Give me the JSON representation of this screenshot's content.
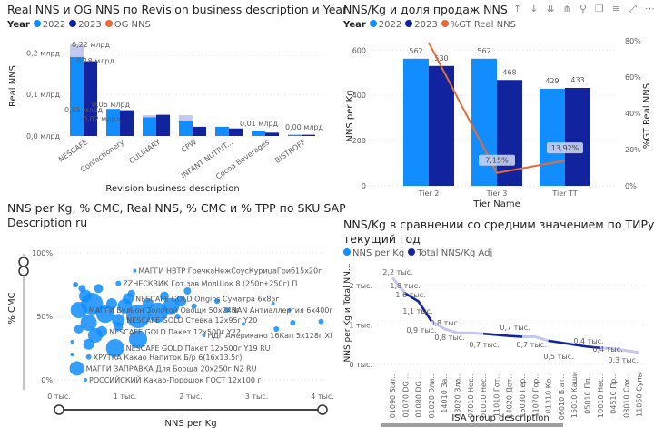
{
  "colors": {
    "y2022": "#118dff",
    "y2023": "#12239e",
    "og": "#e66c37",
    "light": "#c4c8ee"
  },
  "chart1": {
    "title": "Real NNS и OG NNS по Revision business description и Year",
    "legend_title": "Year",
    "legend": [
      "2022",
      "2023",
      "OG NNS"
    ]
  },
  "chart2": {
    "title": "NNS/Kg и доля продаж NNS",
    "legend_title": "Year",
    "legend": [
      "2022",
      "2023",
      "%GT Real NNS"
    ],
    "toolbar_icons": [
      "arrow-up-icon",
      "arrow-down-icon",
      "double-arrow-down-icon",
      "hierarchy-icon",
      "pin-icon",
      "copy-icon",
      "filter-icon",
      "focus-icon",
      "more-icon"
    ]
  },
  "chart3": {
    "title_line1": "NNS per Kg, % CMC, Real NNS, % CMC и % TPP по SKU SAP",
    "title_line2": "Description ru"
  },
  "chart4": {
    "title_line1": "NNS/Kg в сравнении со средним значением по ТИРу,",
    "title_line2": "текущий год",
    "legend": [
      "NNS per Kg",
      "Total NNS/Kg Adj"
    ]
  },
  "chart_data": [
    {
      "type": "bar",
      "xlabel": "Revision business description",
      "ylabel": "Real NNS",
      "ylim": [
        0,
        0.24
      ],
      "yticks": [
        "0,0 млрд",
        "0,1 млрд",
        "0,2 млрд"
      ],
      "ytick_values": [
        0,
        0.1,
        0.2
      ],
      "categories": [
        "NESCAFE",
        "Confectionery",
        "CULINARY",
        "CPW",
        "INFANT NUTRIT...",
        "Cocoa Beverages",
        "BISTROFF"
      ],
      "series": [
        {
          "name": "2022",
          "values": [
            0.19,
            0.065,
            0.045,
            0.035,
            0.022,
            0.013,
            0.003
          ]
        },
        {
          "name": "2023",
          "values": [
            0.18,
            0.062,
            0.051,
            0.022,
            0.018,
            0.008,
            0.003
          ]
        },
        {
          "name": "OG NNS",
          "values": [
            0.22,
            0.06,
            0.05,
            0.05,
            0.02,
            0.01,
            0.0
          ]
        }
      ],
      "data_labels": [
        "0,22 млрд",
        "0,18 млрд",
        "0,06 млрд",
        "0,05 млрд",
        "0,02 млрд",
        "0,01 млрд",
        "0,00 млрд"
      ]
    },
    {
      "type": "bar",
      "xlabel": "Tier Name",
      "ylabel": "NNS per Kg",
      "y2label": "%GT Real NNS",
      "ylim": [
        0,
        640
      ],
      "y2lim": [
        0,
        0.85
      ],
      "yticks": [
        "0",
        "200",
        "400",
        "600"
      ],
      "ytick_values": [
        0,
        200,
        400,
        600
      ],
      "y2ticks": [
        "0%",
        "20%",
        "40%",
        "60%",
        "80%"
      ],
      "y2tick_values": [
        0,
        0.2,
        0.4,
        0.6,
        0.8
      ],
      "categories": [
        "Tier 2",
        "Tier 3",
        "Tier TT"
      ],
      "series": [
        {
          "name": "2022",
          "values": [
            562,
            562,
            429
          ],
          "labels": [
            "562",
            "562",
            "429"
          ]
        },
        {
          "name": "2023",
          "values": [
            530,
            468,
            433
          ],
          "labels": [
            "530",
            "468",
            "433"
          ]
        },
        {
          "name": "%GT Real NNS",
          "values": [
            0.79,
            0.0715,
            0.1392
          ],
          "labels": [
            "",
            "7,15%",
            "13,92%"
          ]
        }
      ]
    },
    {
      "type": "scatter",
      "xlabel": "NNS per Kg",
      "ylabel": "% CMC",
      "xlim": [
        0,
        4000
      ],
      "ylim": [
        0,
        1.1
      ],
      "xticks": [
        "0 тыс.",
        "1 тыс.",
        "2 тыс.",
        "3 тыс.",
        "4 тыс."
      ],
      "xtick_values": [
        0,
        1000,
        2000,
        3000,
        4000
      ],
      "yticks": [
        "0%",
        "50%",
        "100%"
      ],
      "ytick_values": [
        0,
        0.5,
        1
      ],
      "points": [
        {
          "x": 1150,
          "y": 0.86,
          "r": 2,
          "label": "МАГГИ НВТР ГречкаНежСоусКурицаГриб15х20г"
        },
        {
          "x": 900,
          "y": 0.76,
          "r": 3,
          "label": "ZZНЕСКВИК Гот.зав МолШок 8 (250г+250г) П"
        },
        {
          "x": 1050,
          "y": 0.64,
          "r": 6,
          "label": "NESCAFE GOLD Origins Суматра 6х85г"
        },
        {
          "x": 2550,
          "y": 0.55,
          "r": 3,
          "label": "NAN Антиаллергия 6х400г"
        },
        {
          "x": 300,
          "y": 0.55,
          "r": 9,
          "label": "МАГГИ Бульон Золотой Овощи 50х240г"
        },
        {
          "x": 900,
          "y": 0.47,
          "r": 7,
          "label": "NESCAFE GOLD Стевка 12х95г Y20"
        },
        {
          "x": 650,
          "y": 0.38,
          "r": 6,
          "label": "NESCAFE GOLD Пакет 12х500г Y22"
        },
        {
          "x": 2200,
          "y": 0.35,
          "r": 2,
          "label": "НДГ Американо 16Кап 5х128г XI"
        },
        {
          "x": 850,
          "y": 0.25,
          "r": 10,
          "label": "NESCAFE GOLD Пакет 12х500г Y19 RU"
        },
        {
          "x": 450,
          "y": 0.18,
          "r": 3,
          "label": "ХРУТКА Какао Напиток Б/р 6(16х13.5г)"
        },
        {
          "x": 270,
          "y": 0.09,
          "r": 8,
          "label": "МАГГИ ЗАПРАВКА Для Борща 20х250г N2 RU"
        },
        {
          "x": 400,
          "y": 0.0,
          "r": 2,
          "label": "РОССИЙСКИЙ Какао-Порошок ГОСТ 12х100 г"
        },
        {
          "x": 1200,
          "y": 0.5,
          "r": 13,
          "label": ""
        },
        {
          "x": 1500,
          "y": 0.53,
          "r": 11,
          "label": ""
        },
        {
          "x": 1700,
          "y": 0.58,
          "r": 9,
          "label": ""
        },
        {
          "x": 1200,
          "y": 0.32,
          "r": 10,
          "label": ""
        },
        {
          "x": 500,
          "y": 0.6,
          "r": 12,
          "label": ""
        },
        {
          "x": 700,
          "y": 0.52,
          "r": 10,
          "label": ""
        },
        {
          "x": 450,
          "y": 0.45,
          "r": 9,
          "label": ""
        },
        {
          "x": 550,
          "y": 0.35,
          "r": 8,
          "label": ""
        },
        {
          "x": 400,
          "y": 0.66,
          "r": 7,
          "label": ""
        },
        {
          "x": 800,
          "y": 0.6,
          "r": 6,
          "label": ""
        },
        {
          "x": 350,
          "y": 0.72,
          "r": 4,
          "label": ""
        },
        {
          "x": 600,
          "y": 0.72,
          "r": 5,
          "label": ""
        },
        {
          "x": 1000,
          "y": 0.58,
          "r": 8,
          "label": ""
        },
        {
          "x": 1350,
          "y": 0.6,
          "r": 6,
          "label": ""
        },
        {
          "x": 1850,
          "y": 0.62,
          "r": 6,
          "label": ""
        },
        {
          "x": 1950,
          "y": 0.7,
          "r": 4,
          "label": ""
        },
        {
          "x": 2050,
          "y": 0.58,
          "r": 3,
          "label": ""
        },
        {
          "x": 1800,
          "y": 0.5,
          "r": 3,
          "label": ""
        },
        {
          "x": 3300,
          "y": 0.4,
          "r": 3,
          "label": ""
        },
        {
          "x": 3550,
          "y": 0.45,
          "r": 3,
          "label": ""
        },
        {
          "x": 3980,
          "y": 0.46,
          "r": 3,
          "label": ""
        },
        {
          "x": 3500,
          "y": 0.55,
          "r": 2,
          "label": ""
        },
        {
          "x": 3250,
          "y": 0.6,
          "r": 2,
          "label": ""
        },
        {
          "x": 2800,
          "y": 0.44,
          "r": 2,
          "label": ""
        },
        {
          "x": 450,
          "y": 0.28,
          "r": 6,
          "label": ""
        },
        {
          "x": 300,
          "y": 0.4,
          "r": 5,
          "label": ""
        },
        {
          "x": 250,
          "y": 0.75,
          "r": 3,
          "label": ""
        },
        {
          "x": 200,
          "y": 0.3,
          "r": 2,
          "label": ""
        },
        {
          "x": 200,
          "y": 0.2,
          "r": 2,
          "label": ""
        },
        {
          "x": 900,
          "y": 0.42,
          "r": 5,
          "label": ""
        },
        {
          "x": 1100,
          "y": 0.68,
          "r": 4,
          "label": ""
        },
        {
          "x": 1600,
          "y": 0.66,
          "r": 5,
          "label": ""
        },
        {
          "x": 2400,
          "y": 0.62,
          "r": 3,
          "label": ""
        }
      ]
    },
    {
      "type": "line",
      "xlabel": "ISA group description",
      "ylabel": "NNS per Kg и Total NN...",
      "ylim": [
        0,
        2.5
      ],
      "yticks": [
        "0 тыс.",
        "1 тыс.",
        "2 тыс."
      ],
      "ytick_values": [
        0,
        1,
        2
      ],
      "categories": [
        "01090 Star...",
        "01070 DG ...",
        "01080 DG ...",
        "01020 Эли...",
        "14010 За...",
        "13020 Зла...",
        "07010 Нес...",
        "01010 Нес...",
        "11010 Гот...",
        "14020 Дет...",
        "15030 Гер...",
        "11070 Гор...",
        "01310 Ко...",
        "06010 Б.ат...",
        "15010 Каши",
        "05010 Пл...",
        "10010 Нес...",
        "04510 Пр...",
        "08010 Сах...",
        "11050 Супы"
      ],
      "series": [
        {
          "name": "NNS per Kg",
          "values": [
            2.2,
            1.8,
            1.6,
            1.1,
            0.9,
            0.8,
            0.8,
            0.78,
            0.75,
            0.72,
            0.7,
            0.7,
            0.6,
            0.55,
            0.5,
            0.45,
            0.42,
            0.4,
            0.35,
            0.3
          ]
        },
        {
          "name": "Total NNS/Kg Adj",
          "values": [
            2.2,
            1.8,
            1.6,
            1.1,
            0.9,
            0.8,
            0.8,
            0.78,
            0.75,
            0.72,
            0.7,
            0.7,
            0.6,
            0.55,
            0.5,
            0.45,
            0.42,
            0.4,
            0.35,
            0.3
          ]
        }
      ],
      "data_labels": [
        "2,2 тыс.",
        "1,8 тыс.",
        "1,6 тыс.",
        "1,1 тыс.",
        "0,9 тыс.",
        "0,8 тыс.",
        "0,8 тыс.",
        "0,7 тыс.",
        "0,7 тыс.",
        "0,7 тыс.",
        "0,5 тыс.",
        "0,4 тыс.",
        "0,4 тыс.",
        "0,3 тыс."
      ]
    }
  ]
}
